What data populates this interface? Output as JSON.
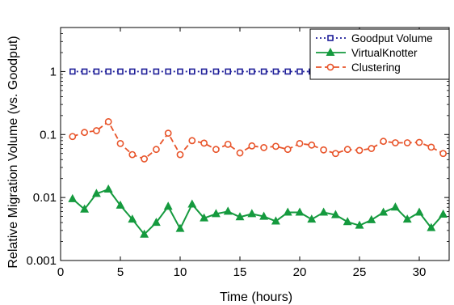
{
  "chart_data": {
    "type": "line",
    "xlabel": "Time (hours)",
    "ylabel": "Relative Migration Volume (vs. Goodput)",
    "xlim": [
      0,
      32.5
    ],
    "ylim": [
      0.001,
      5
    ],
    "yscale": "log",
    "xticks": [
      0,
      5,
      10,
      15,
      20,
      25,
      30
    ],
    "xtick_labels": [
      "0",
      "5",
      "10",
      "15",
      "20",
      "25",
      "30"
    ],
    "yticks": [
      0.001,
      0.01,
      0.1,
      1
    ],
    "ytick_labels": [
      "0.001",
      "0.01",
      "0.1",
      "1"
    ],
    "grid": false,
    "legend_position": "top-right",
    "x": [
      1,
      2,
      3,
      4,
      5,
      6,
      7,
      8,
      9,
      10,
      11,
      12,
      13,
      14,
      15,
      16,
      17,
      18,
      19,
      20,
      21,
      22,
      23,
      24,
      25,
      26,
      27,
      28,
      29,
      30,
      31,
      32
    ],
    "series": [
      {
        "name": "Goodput Volume",
        "color": "#1f1f99",
        "line_style": "dotted",
        "marker": "square",
        "values": [
          1,
          1,
          1,
          1,
          1,
          1,
          1,
          1,
          1,
          1,
          1,
          1,
          1,
          1,
          1,
          1,
          1,
          1,
          1,
          1,
          1,
          1,
          1,
          1,
          1,
          1,
          1,
          1,
          1,
          1,
          1,
          1
        ]
      },
      {
        "name": "VirtualKnotter",
        "color": "#159a3e",
        "line_style": "solid",
        "marker": "triangle",
        "values": [
          0.0095,
          0.0065,
          0.0115,
          0.0135,
          0.0075,
          0.0045,
          0.0026,
          0.004,
          0.0072,
          0.0032,
          0.0078,
          0.0047,
          0.0055,
          0.006,
          0.0049,
          0.0055,
          0.005,
          0.0042,
          0.0058,
          0.0058,
          0.0045,
          0.0058,
          0.0053,
          0.0041,
          0.0036,
          0.0044,
          0.0058,
          0.007,
          0.0045,
          0.0058,
          0.0033,
          0.0054
        ]
      },
      {
        "name": "Clustering",
        "color": "#e8542a",
        "line_style": "dashed",
        "marker": "circle",
        "values": [
          0.093,
          0.108,
          0.115,
          0.16,
          0.072,
          0.048,
          0.041,
          0.058,
          0.105,
          0.048,
          0.08,
          0.073,
          0.058,
          0.07,
          0.051,
          0.066,
          0.062,
          0.065,
          0.058,
          0.072,
          0.068,
          0.057,
          0.05,
          0.058,
          0.056,
          0.06,
          0.078,
          0.074,
          0.074,
          0.075,
          0.063,
          0.05
        ]
      }
    ]
  }
}
